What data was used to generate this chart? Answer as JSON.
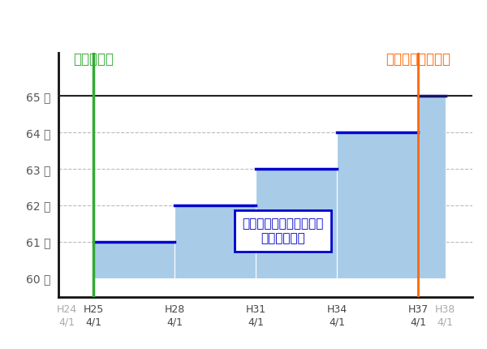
{
  "title_green": "改正法施行",
  "title_orange": "経過措置期間終了",
  "annotation_line1": "希望者全員を対象とする",
  "annotation_line2": "継続雇用制度",
  "x_labels": [
    "H24\n4/1",
    "H25\n4/1",
    "H28\n4/1",
    "H31\n4/1",
    "H34\n4/1",
    "H37\n4/1",
    "H38\n4/1"
  ],
  "x_positions": [
    0,
    1,
    4,
    7,
    10,
    13,
    14
  ],
  "y_ticks": [
    60,
    61,
    62,
    63,
    64,
    65
  ],
  "y_labels": [
    "60 歳",
    "61 歳",
    "62 歳",
    "63 歳",
    "64 歳",
    "65 歳"
  ],
  "ylim": [
    59.5,
    66.2
  ],
  "xlim": [
    -0.3,
    15.0
  ],
  "bars": [
    {
      "x_start": 1,
      "x_end": 4,
      "y_bottom": 60,
      "y_top": 61
    },
    {
      "x_start": 4,
      "x_end": 7,
      "y_bottom": 60,
      "y_top": 62
    },
    {
      "x_start": 7,
      "x_end": 10,
      "y_bottom": 60,
      "y_top": 63
    },
    {
      "x_start": 10,
      "x_end": 13,
      "y_bottom": 60,
      "y_top": 64
    },
    {
      "x_start": 13,
      "x_end": 14,
      "y_bottom": 60,
      "y_top": 65
    }
  ],
  "bar_fill_color": "#a8cce8",
  "bar_edge_color": "white",
  "bar_top_color": "#0000cc",
  "green_line_x": 1,
  "orange_line_x": 13,
  "hline_y": 65,
  "hline_color": "#222222",
  "background_color": "#ffffff",
  "grid_color": "#bbbbbb",
  "title_green_color": "#33aa33",
  "title_orange_color": "#ff6600",
  "left_spine_color": "#111111",
  "bottom_spine_color": "#111111",
  "annotation_bbox_color": "#0000cc",
  "annotation_text_color": "#0000cc",
  "ytick_color": "#555555",
  "xtick_h24_color": "#aaaaaa",
  "xtick_h38_color": "#aaaaaa"
}
